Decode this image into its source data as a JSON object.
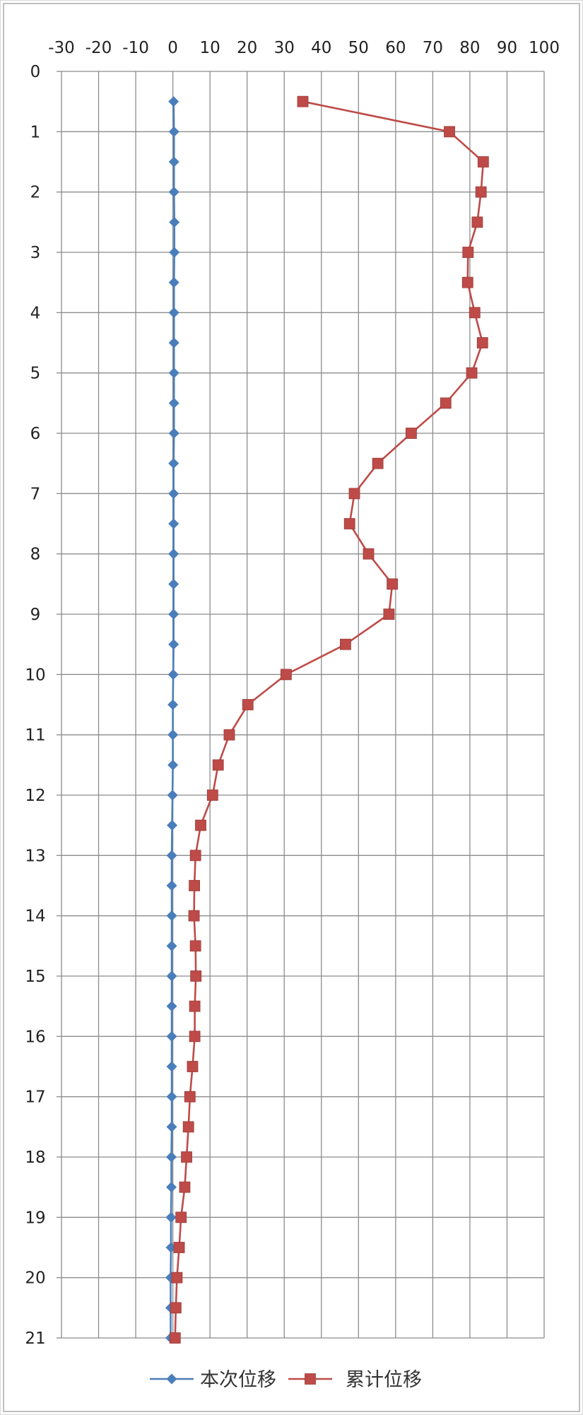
{
  "chart_data": {
    "type": "line",
    "orientation": "depth-profile (x horizontal values, y depth downward)",
    "title": "",
    "xlabel": "",
    "ylabel": "",
    "xlim": [
      -30,
      100
    ],
    "ylim": [
      0,
      21
    ],
    "x_ticks": [
      -30,
      -20,
      -10,
      0,
      10,
      20,
      30,
      40,
      50,
      60,
      70,
      80,
      90,
      100
    ],
    "y_ticks": [
      0,
      1,
      2,
      3,
      4,
      5,
      6,
      7,
      8,
      9,
      10,
      11,
      12,
      13,
      14,
      15,
      16,
      17,
      18,
      19,
      20,
      21
    ],
    "x_tick_labels": [
      "-30",
      "-20",
      "-10",
      "0",
      "10",
      "20",
      "30",
      "40",
      "50",
      "60",
      "70",
      "80",
      "90",
      "100"
    ],
    "y_tick_labels": [
      "0",
      "1",
      "2",
      "3",
      "4",
      "5",
      "6",
      "7",
      "8",
      "9",
      "10",
      "11",
      "12",
      "13",
      "14",
      "15",
      "16",
      "17",
      "18",
      "19",
      "20",
      "21"
    ],
    "x_axis_position": "top",
    "grid": true,
    "legend_position": "bottom",
    "depth": [
      0.5,
      1,
      1.5,
      2,
      2.5,
      3,
      3.5,
      4,
      4.5,
      5,
      5.5,
      6,
      6.5,
      7,
      7.5,
      8,
      8.5,
      9,
      9.5,
      10,
      10.5,
      11,
      11.5,
      12,
      12.5,
      13,
      13.5,
      14,
      14.5,
      15,
      15.5,
      16,
      16.5,
      17,
      17.5,
      18,
      18.5,
      19,
      19.5,
      20,
      20.5,
      21
    ],
    "series": [
      {
        "name": "本次位移",
        "color": "#4a7ebb",
        "marker": "diamond",
        "values": [
          0.2,
          0.3,
          0.3,
          0.3,
          0.4,
          0.4,
          0.3,
          0.3,
          0.3,
          0.3,
          0.3,
          0.3,
          0.2,
          0.2,
          0.2,
          0.2,
          0.2,
          0.2,
          0.2,
          0.1,
          0,
          0,
          0,
          -0.1,
          -0.2,
          -0.3,
          -0.3,
          -0.3,
          -0.3,
          -0.3,
          -0.3,
          -0.3,
          -0.3,
          -0.3,
          -0.3,
          -0.4,
          -0.4,
          -0.5,
          -0.5,
          -0.6,
          -0.6,
          -0.6
        ]
      },
      {
        "name": "累计位移",
        "color": "#be4b48",
        "marker": "square",
        "values": [
          35,
          74.5,
          83.6,
          83,
          82,
          79.5,
          79.4,
          81.3,
          83.4,
          80.5,
          73.5,
          64.2,
          55.2,
          48.9,
          47.6,
          52.7,
          59.1,
          58.2,
          46.5,
          30.5,
          20.2,
          15.2,
          12.2,
          10.7,
          7.5,
          6.1,
          5.8,
          5.7,
          6.1,
          6.2,
          5.9,
          5.9,
          5.3,
          4.6,
          4.2,
          3.7,
          3.2,
          2.2,
          1.7,
          1.1,
          0.8,
          0.6
        ]
      }
    ]
  }
}
